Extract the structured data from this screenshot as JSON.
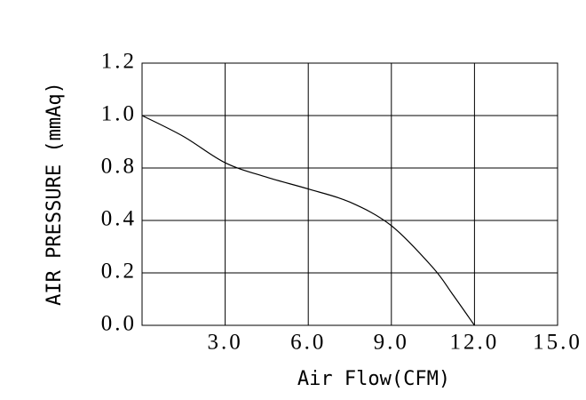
{
  "chart_data": {
    "type": "line",
    "xlabel": "Air Flow(CFM)",
    "ylabel": "AIR PRESSURE (mmAq)",
    "x": [
      0,
      1.5,
      3,
      4.5,
      6,
      7.5,
      9,
      10.5,
      11.2,
      12
    ],
    "series": [
      {
        "name": "curve",
        "color": "#000000",
        "values": [
          1.0,
          0.92,
          0.82,
          0.73,
          0.64,
          0.54,
          0.38,
          0.22,
          0.12,
          0
        ]
      }
    ],
    "xlim": [
      0,
      15
    ],
    "xticks": [
      {
        "value": 3,
        "label": "3.0"
      },
      {
        "value": 6,
        "label": "6.0"
      },
      {
        "value": 9,
        "label": "9.0"
      },
      {
        "value": 12,
        "label": "12.0"
      },
      {
        "value": 15,
        "label": "15.0"
      }
    ],
    "ylim": [
      0,
      1.2
    ],
    "yticks": [
      {
        "value": 0,
        "label": "0.0"
      },
      0.2,
      0.4,
      0.8,
      {
        "value": 1,
        "label": "1.0"
      },
      1.2
    ],
    "grid": true
  }
}
